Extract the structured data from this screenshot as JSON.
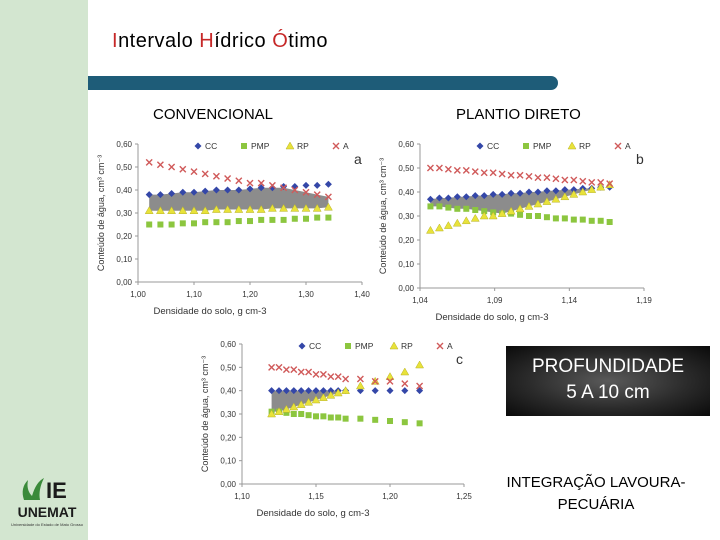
{
  "title": {
    "part1_hl": "I",
    "part1": "ntervalo ",
    "part2_hl": "H",
    "part2": "ídrico ",
    "part3_hl": "Ó",
    "part3": "timo"
  },
  "headings": {
    "left": "CONVENCIONAL",
    "right": "PLANTIO DIRETO"
  },
  "depth_label": {
    "line1": "PROFUNDIDADE",
    "line2": "5 A 10 cm"
  },
  "integration_label": {
    "line1": "INTEGRAÇÃO LAVOURA-",
    "line2": "PECUÁRIA"
  },
  "logo": {
    "mark": "IE",
    "name": "UNEMAT",
    "subtitle": "Universidade do Estado de Mato Grosso"
  },
  "colors": {
    "cc": "#3447a8",
    "pmp": "#8cc63f",
    "rp": "#e8e23a",
    "a": "#d05a5a",
    "band": "#808080",
    "accent": "#1e5c78"
  },
  "chart_data": [
    {
      "id": "a",
      "type": "scatter",
      "panel_letter": "a",
      "xlabel": "Densidade do solo, g cm-3",
      "ylabel": "Conteúdo de água, cm³ cm⁻³",
      "xlim": [
        1.0,
        1.4
      ],
      "ylim": [
        0.0,
        0.6
      ],
      "xticks": [
        "1,00",
        "1,10",
        "1,20",
        "1,30",
        "1,40"
      ],
      "yticks": [
        "0,00",
        "0,10",
        "0,20",
        "0,30",
        "0,40",
        "0,50",
        "0,60"
      ],
      "legend": [
        "CC",
        "PMP",
        "RP",
        "A"
      ],
      "x": [
        1.02,
        1.04,
        1.06,
        1.08,
        1.1,
        1.12,
        1.14,
        1.16,
        1.18,
        1.2,
        1.22,
        1.24,
        1.26,
        1.28,
        1.3,
        1.32,
        1.34
      ],
      "series": [
        {
          "name": "CC",
          "values": [
            0.38,
            0.38,
            0.385,
            0.39,
            0.39,
            0.395,
            0.4,
            0.4,
            0.4,
            0.405,
            0.41,
            0.41,
            0.415,
            0.415,
            0.42,
            0.42,
            0.425
          ]
        },
        {
          "name": "PMP",
          "values": [
            0.25,
            0.25,
            0.25,
            0.255,
            0.255,
            0.26,
            0.26,
            0.26,
            0.265,
            0.265,
            0.27,
            0.27,
            0.27,
            0.275,
            0.275,
            0.28,
            0.28
          ]
        },
        {
          "name": "RP",
          "values": [
            0.31,
            0.31,
            0.31,
            0.31,
            0.31,
            0.31,
            0.315,
            0.315,
            0.315,
            0.315,
            0.315,
            0.32,
            0.32,
            0.32,
            0.32,
            0.32,
            0.325
          ]
        },
        {
          "name": "A",
          "values": [
            0.52,
            0.51,
            0.5,
            0.49,
            0.48,
            0.47,
            0.46,
            0.45,
            0.44,
            0.43,
            0.43,
            0.42,
            0.41,
            0.4,
            0.39,
            0.38,
            0.37
          ]
        }
      ]
    },
    {
      "id": "b",
      "type": "scatter",
      "panel_letter": "b",
      "xlabel": "Densidade do solo, g cm-3",
      "ylabel": "Conteúdo de água, cm³ cm⁻³",
      "xlim": [
        1.04,
        1.19
      ],
      "ylim": [
        0.0,
        0.6
      ],
      "xticks": [
        "1,04",
        "1,09",
        "1,14",
        "1,19"
      ],
      "yticks": [
        "0,00",
        "0,10",
        "0,20",
        "0,30",
        "0,40",
        "0,50",
        "0,60"
      ],
      "legend": [
        "CC",
        "PMP",
        "RP",
        "A"
      ],
      "x": [
        1.047,
        1.053,
        1.059,
        1.065,
        1.071,
        1.077,
        1.083,
        1.089,
        1.095,
        1.101,
        1.107,
        1.113,
        1.119,
        1.125,
        1.131,
        1.137,
        1.143,
        1.149,
        1.155,
        1.161,
        1.167
      ],
      "series": [
        {
          "name": "CC",
          "values": [
            0.37,
            0.375,
            0.375,
            0.38,
            0.38,
            0.385,
            0.385,
            0.39,
            0.39,
            0.395,
            0.395,
            0.4,
            0.4,
            0.405,
            0.405,
            0.41,
            0.41,
            0.415,
            0.415,
            0.42,
            0.42
          ]
        },
        {
          "name": "PMP",
          "values": [
            0.34,
            0.34,
            0.335,
            0.33,
            0.33,
            0.325,
            0.32,
            0.315,
            0.31,
            0.31,
            0.305,
            0.3,
            0.3,
            0.295,
            0.29,
            0.29,
            0.285,
            0.285,
            0.28,
            0.28,
            0.275
          ]
        },
        {
          "name": "RP",
          "values": [
            0.24,
            0.25,
            0.26,
            0.27,
            0.28,
            0.29,
            0.3,
            0.3,
            0.31,
            0.32,
            0.33,
            0.34,
            0.35,
            0.36,
            0.37,
            0.38,
            0.39,
            0.4,
            0.41,
            0.42,
            0.43
          ]
        },
        {
          "name": "A",
          "values": [
            0.5,
            0.5,
            0.495,
            0.49,
            0.49,
            0.485,
            0.48,
            0.48,
            0.475,
            0.47,
            0.47,
            0.465,
            0.46,
            0.46,
            0.455,
            0.45,
            0.45,
            0.445,
            0.44,
            0.44,
            0.435
          ]
        }
      ]
    },
    {
      "id": "c",
      "type": "scatter",
      "panel_letter": "c",
      "xlabel": "Densidade do solo, g cm-3",
      "ylabel": "Conteúdo de água, cm³ cm⁻³",
      "xlim": [
        1.1,
        1.25
      ],
      "ylim": [
        0.0,
        0.6
      ],
      "xticks": [
        "1,10",
        "1,15",
        "1,20",
        "1,25"
      ],
      "yticks": [
        "0,00",
        "0,10",
        "0,20",
        "0,30",
        "0,40",
        "0,50",
        "0,60"
      ],
      "legend": [
        "CC",
        "PMP",
        "RP",
        "A"
      ],
      "x": [
        1.12,
        1.125,
        1.13,
        1.135,
        1.14,
        1.145,
        1.15,
        1.155,
        1.16,
        1.165,
        1.17,
        1.18,
        1.19,
        1.2,
        1.21,
        1.22
      ],
      "series": [
        {
          "name": "CC",
          "values": [
            0.4,
            0.4,
            0.4,
            0.4,
            0.4,
            0.4,
            0.4,
            0.4,
            0.4,
            0.4,
            0.4,
            0.4,
            0.4,
            0.4,
            0.4,
            0.4
          ]
        },
        {
          "name": "PMP",
          "values": [
            0.31,
            0.31,
            0.305,
            0.3,
            0.3,
            0.295,
            0.29,
            0.29,
            0.285,
            0.285,
            0.28,
            0.28,
            0.275,
            0.27,
            0.265,
            0.26
          ]
        },
        {
          "name": "RP",
          "values": [
            0.3,
            0.31,
            0.32,
            0.33,
            0.34,
            0.35,
            0.36,
            0.37,
            0.38,
            0.39,
            0.4,
            0.42,
            0.44,
            0.46,
            0.48,
            0.51
          ]
        },
        {
          "name": "A",
          "values": [
            0.5,
            0.5,
            0.49,
            0.49,
            0.48,
            0.48,
            0.47,
            0.47,
            0.46,
            0.46,
            0.45,
            0.45,
            0.44,
            0.44,
            0.43,
            0.42
          ]
        }
      ]
    }
  ]
}
